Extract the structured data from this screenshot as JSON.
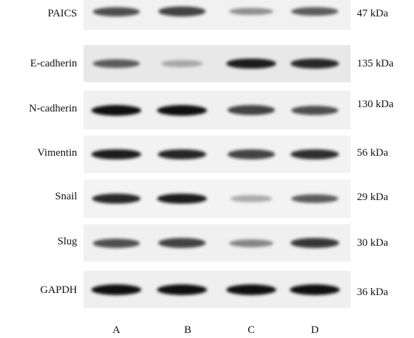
{
  "lanes": [
    "A",
    "B",
    "C",
    "D"
  ],
  "rows": [
    {
      "protein": "PAICS",
      "kda": "47 kDa",
      "intensity": [
        0.75,
        0.8,
        0.45,
        0.7
      ]
    },
    {
      "protein": "E-cadherin",
      "kda": "135 kDa",
      "intensity": [
        0.7,
        0.3,
        0.95,
        0.9
      ]
    },
    {
      "protein": "N-cadherin",
      "kda": "130 kDa",
      "intensity": [
        1.0,
        1.0,
        0.8,
        0.75
      ]
    },
    {
      "protein": "Vimentin",
      "kda": "56 kDa",
      "intensity": [
        0.95,
        0.92,
        0.8,
        0.88
      ]
    },
    {
      "protein": "Snail",
      "kda": "29 kDa",
      "intensity": [
        0.9,
        0.95,
        0.3,
        0.7
      ]
    },
    {
      "protein": "Slug",
      "kda": "30 kDa",
      "intensity": [
        0.75,
        0.8,
        0.5,
        0.85
      ]
    },
    {
      "protein": "GAPDH",
      "kda": "36 kDa",
      "intensity": [
        1.0,
        1.0,
        1.0,
        1.0
      ]
    }
  ]
}
